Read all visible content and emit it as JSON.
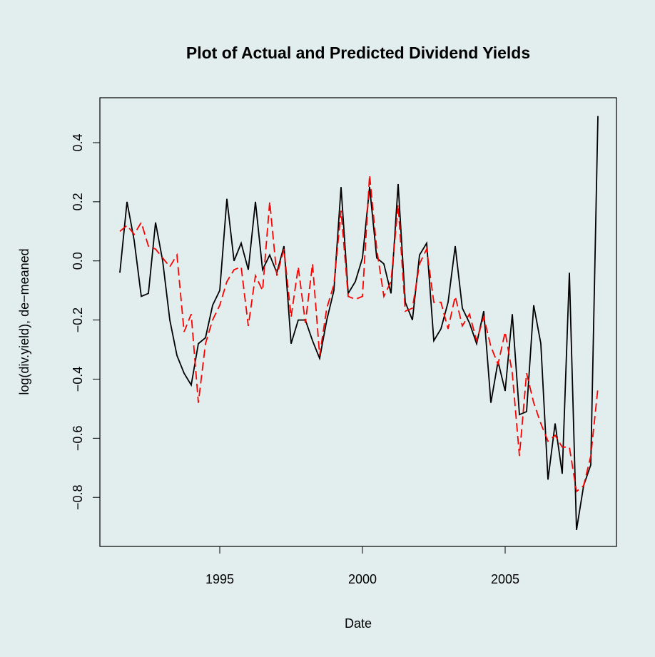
{
  "chart_data": {
    "type": "line",
    "title": "Plot of Actual and Predicted Dividend Yields",
    "x_label": "Date",
    "y_label": "log(div.yield), de−meaned",
    "background": "#e1eeed",
    "x": [
      1991.5,
      1991.75,
      1992,
      1992.25,
      1992.5,
      1992.75,
      1993,
      1993.25,
      1993.5,
      1993.75,
      1994,
      1994.25,
      1994.5,
      1994.75,
      1995,
      1995.25,
      1995.5,
      1995.75,
      1996,
      1996.25,
      1996.5,
      1996.75,
      1997,
      1997.25,
      1997.5,
      1997.75,
      1998,
      1998.25,
      1998.5,
      1998.75,
      1999,
      1999.25,
      1999.5,
      1999.75,
      2000,
      2000.25,
      2000.5,
      2000.75,
      2001,
      2001.25,
      2001.5,
      2001.75,
      2002,
      2002.25,
      2002.5,
      2002.75,
      2003,
      2003.25,
      2003.5,
      2003.75,
      2004,
      2004.25,
      2004.5,
      2004.75,
      2005,
      2005.25,
      2005.5,
      2005.75,
      2006,
      2006.25,
      2006.5,
      2006.75,
      2007,
      2007.25,
      2007.5,
      2007.75,
      2008,
      2008.25
    ],
    "series": [
      {
        "color": "#000000",
        "dashed": false,
        "values": [
          -0.04,
          0.2,
          0.07,
          -0.12,
          -0.11,
          0.13,
          0.0,
          -0.2,
          -0.32,
          -0.38,
          -0.42,
          -0.28,
          -0.26,
          -0.15,
          -0.1,
          0.21,
          0.0,
          0.06,
          -0.03,
          0.2,
          -0.03,
          0.02,
          -0.04,
          0.05,
          -0.28,
          -0.2,
          -0.2,
          -0.27,
          -0.33,
          -0.2,
          -0.1,
          0.25,
          -0.11,
          -0.07,
          0.01,
          0.25,
          0.01,
          -0.01,
          -0.11,
          0.26,
          -0.14,
          -0.2,
          0.02,
          0.06,
          -0.27,
          -0.23,
          -0.14,
          0.05,
          -0.16,
          -0.21,
          -0.28,
          -0.17,
          -0.48,
          -0.34,
          -0.44,
          -0.18,
          -0.52,
          -0.51,
          -0.15,
          -0.28,
          -0.74,
          -0.55,
          -0.72,
          -0.04,
          -0.91,
          -0.76,
          -0.69,
          0.49
        ]
      },
      {
        "color": "#ff0000",
        "dashed": true,
        "values": [
          0.1,
          0.12,
          0.09,
          0.13,
          0.05,
          0.04,
          0.01,
          -0.02,
          0.02,
          -0.24,
          -0.18,
          -0.48,
          -0.28,
          -0.2,
          -0.15,
          -0.07,
          -0.03,
          -0.02,
          -0.22,
          -0.05,
          -0.1,
          0.2,
          -0.05,
          0.04,
          -0.19,
          -0.02,
          -0.21,
          -0.01,
          -0.32,
          -0.16,
          -0.08,
          0.17,
          -0.12,
          -0.13,
          -0.12,
          0.29,
          0.04,
          -0.12,
          -0.07,
          0.19,
          -0.17,
          -0.16,
          -0.01,
          0.04,
          -0.14,
          -0.14,
          -0.23,
          -0.12,
          -0.22,
          -0.18,
          -0.27,
          -0.19,
          -0.29,
          -0.35,
          -0.24,
          -0.38,
          -0.66,
          -0.38,
          -0.48,
          -0.55,
          -0.61,
          -0.59,
          -0.63,
          -0.63,
          -0.78,
          -0.76,
          -0.66,
          -0.43
        ]
      }
    ],
    "xlim": [
      1990.8,
      2008.9
    ],
    "xticks": [
      1995,
      2000,
      2005
    ],
    "ylim": [
      -0.966,
      0.552
    ],
    "yticks": [
      {
        "value": -0.8,
        "label": "−0.8"
      },
      {
        "value": -0.6,
        "label": "−0.6"
      },
      {
        "value": -0.4,
        "label": "−0.4"
      },
      {
        "value": -0.2,
        "label": "−0.2"
      },
      {
        "value": 0,
        "label": "0.0"
      },
      0.2,
      0.4
    ]
  }
}
